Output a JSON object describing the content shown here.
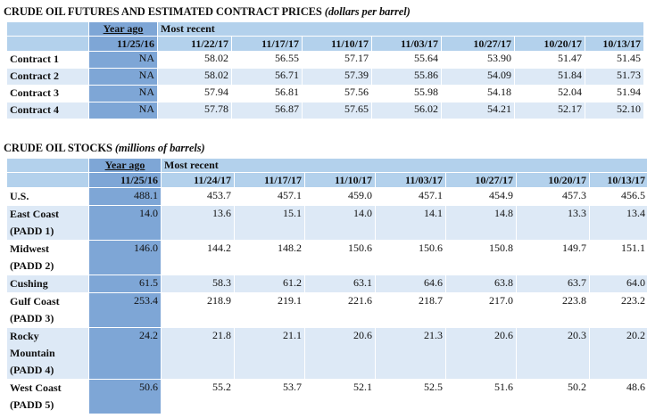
{
  "futures": {
    "title": "CRUDE OIL FUTURES AND ESTIMATED CONTRACT PRICES",
    "subtitle": "(dollars per barrel)",
    "year_ago_label": "Year ago",
    "most_recent_label": "Most recent",
    "dates": [
      "11/25/16",
      "11/22/17",
      "11/17/17",
      "11/10/17",
      "11/03/17",
      "10/27/17",
      "10/20/17",
      "10/13/17"
    ],
    "rows": [
      {
        "label": "Contract 1",
        "values": [
          "NA",
          "58.02",
          "56.55",
          "57.17",
          "55.64",
          "53.90",
          "51.47",
          "51.45"
        ]
      },
      {
        "label": "Contract 2",
        "values": [
          "NA",
          "58.02",
          "56.71",
          "57.39",
          "55.86",
          "54.09",
          "51.84",
          "51.73"
        ]
      },
      {
        "label": "Contract 3",
        "values": [
          "NA",
          "57.94",
          "56.81",
          "57.56",
          "55.98",
          "54.18",
          "52.04",
          "51.94"
        ]
      },
      {
        "label": "Contract 4",
        "values": [
          "NA",
          "57.78",
          "56.87",
          "57.65",
          "56.02",
          "54.21",
          "52.17",
          "52.10"
        ]
      }
    ]
  },
  "stocks": {
    "title": "CRUDE OIL STOCKS",
    "subtitle": "(millions of barrels)",
    "year_ago_label": "Year ago",
    "most_recent_label": "Most recent",
    "dates": [
      "11/25/16",
      "11/24/17",
      "11/17/17",
      "11/10/17",
      "11/03/17",
      "10/27/17",
      "10/20/17",
      "10/13/17"
    ],
    "rows": [
      {
        "label_lines": [
          "U.S."
        ],
        "values": [
          "488.1",
          "453.7",
          "457.1",
          "459.0",
          "457.1",
          "454.9",
          "457.3",
          "456.5"
        ]
      },
      {
        "label_lines": [
          "East Coast",
          "(PADD 1)"
        ],
        "values": [
          "14.0",
          "13.6",
          "15.1",
          "14.0",
          "14.1",
          "14.8",
          "13.3",
          "13.4"
        ]
      },
      {
        "label_lines": [
          "Midwest",
          "(PADD 2)"
        ],
        "values": [
          "146.0",
          "144.2",
          "148.2",
          "150.6",
          "150.6",
          "150.8",
          "149.7",
          "151.1"
        ]
      },
      {
        "label_lines": [
          "Cushing"
        ],
        "values": [
          "61.5",
          "58.3",
          "61.2",
          "63.1",
          "64.6",
          "63.8",
          "63.7",
          "64.0"
        ]
      },
      {
        "label_lines": [
          "Gulf Coast",
          "(PADD 3)"
        ],
        "values": [
          "253.4",
          "218.9",
          "219.1",
          "221.6",
          "218.7",
          "217.0",
          "223.8",
          "223.2"
        ]
      },
      {
        "label_lines": [
          "Rocky",
          "Mountain",
          "(PADD 4)"
        ],
        "values": [
          "24.2",
          "21.8",
          "21.1",
          "20.6",
          "21.3",
          "20.6",
          "20.3",
          "20.2"
        ]
      },
      {
        "label_lines": [
          "West Coast",
          "(PADD 5)"
        ],
        "values": [
          "50.6",
          "55.2",
          "53.7",
          "52.1",
          "52.5",
          "51.6",
          "50.2",
          "48.6"
        ]
      }
    ]
  }
}
